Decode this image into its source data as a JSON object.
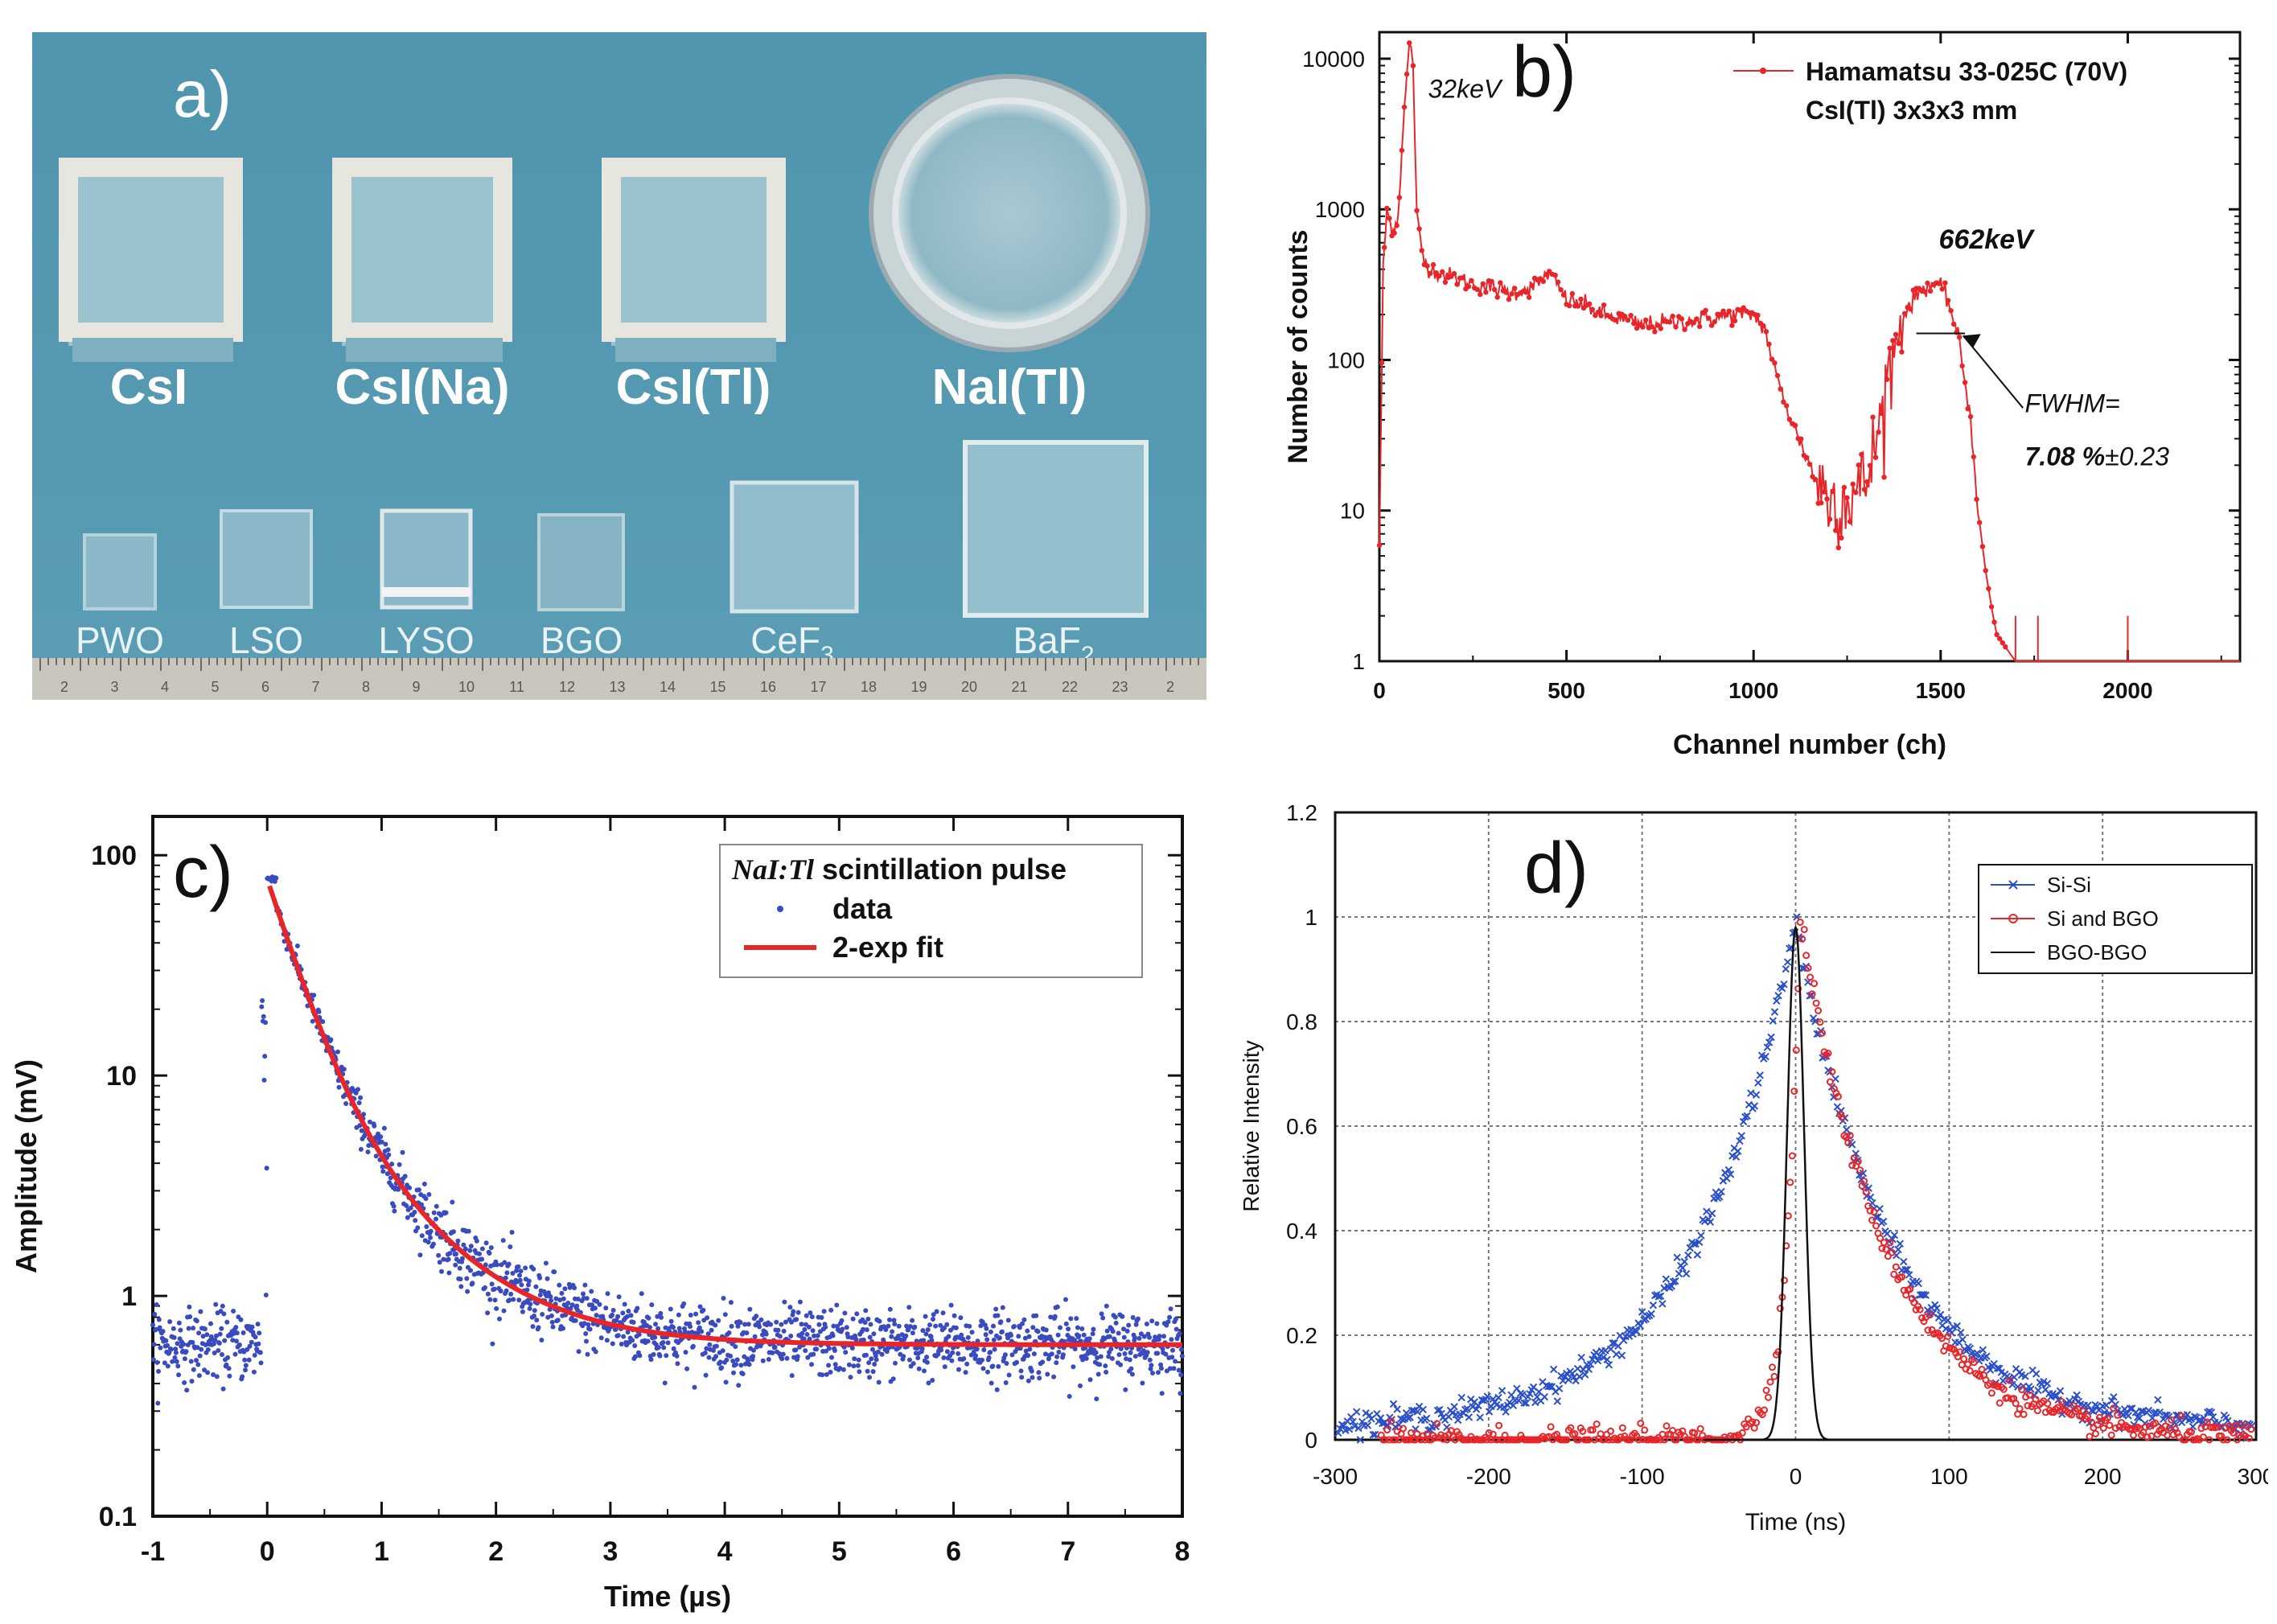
{
  "photo_panel": {
    "label": "a)",
    "top_crystals": [
      "CsI",
      "CsI(Na)",
      "CsI(Tl)",
      "NaI(Tl)"
    ],
    "bottom_crystals": [
      {
        "name": "PWO",
        "sub": ""
      },
      {
        "name": "LSO",
        "sub": ""
      },
      {
        "name": "LYSO",
        "sub": ""
      },
      {
        "name": "BGO",
        "sub": ""
      },
      {
        "name": "CeF",
        "sub": "3"
      },
      {
        "name": "BaF",
        "sub": "2"
      }
    ],
    "ruler_numbers": [
      "2",
      "3",
      "4",
      "5",
      "6",
      "7",
      "8",
      "9",
      "10",
      "11",
      "12",
      "13",
      "14",
      "15",
      "16",
      "17",
      "18",
      "19",
      "20",
      "21",
      "22",
      "23",
      "2"
    ]
  },
  "chart_data": [
    {
      "id": "b",
      "label": "b)",
      "type": "line",
      "yscale": "log",
      "xlabel": "Channel number (ch)",
      "ylabel": "Number of counts",
      "xlim": [
        0,
        2300
      ],
      "ylim": [
        1,
        15000
      ],
      "xticks": [
        0,
        500,
        1000,
        1500,
        2000
      ],
      "yticks": [
        1,
        10,
        100,
        1000,
        10000
      ],
      "ytick_labels": [
        "1",
        "10",
        "100",
        "1000",
        "10000"
      ],
      "legend": [
        "Hamamatsu 33-025C (70V)",
        "CsI(Tl) 3x3x3 mm"
      ],
      "annotations": {
        "low_peak": "32keV",
        "peak": "662keV",
        "fwhm_label": "FWHM=",
        "fwhm_value": "7.08 %",
        "fwhm_err": "±0.23"
      },
      "series": [
        {
          "name": "Hamamatsu 33-025C (70V)",
          "color": "#e8262a",
          "x": [
            0,
            10,
            20,
            30,
            40,
            50,
            60,
            70,
            80,
            85,
            90,
            95,
            100,
            110,
            120,
            140,
            160,
            200,
            250,
            300,
            350,
            400,
            430,
            450,
            470,
            500,
            550,
            600,
            700,
            800,
            900,
            950,
            1000,
            1030,
            1060,
            1100,
            1150,
            1200,
            1250,
            1300,
            1330,
            1360,
            1400,
            1450,
            1480,
            1500,
            1520,
            1550,
            1580,
            1600,
            1620,
            1640,
            1650,
            1700,
            1750,
            1800,
            2000
          ],
          "values": [
            6,
            400,
            1000,
            780,
            750,
            900,
            2500,
            6000,
            12000,
            12500,
            9000,
            3000,
            900,
            600,
            450,
            400,
            380,
            350,
            320,
            300,
            280,
            300,
            330,
            380,
            330,
            250,
            230,
            200,
            170,
            180,
            190,
            200,
            200,
            160,
            80,
            40,
            20,
            12,
            12,
            15,
            30,
            80,
            200,
            300,
            320,
            300,
            250,
            130,
            40,
            10,
            4,
            2,
            1.5,
            1,
            1,
            1,
            1
          ]
        }
      ]
    },
    {
      "id": "c",
      "label": "c)",
      "type": "scatter",
      "yscale": "log",
      "xlabel": "Time (µs)",
      "ylabel": "Amplitude (mV)",
      "xlim": [
        -1,
        8
      ],
      "ylim": [
        0.1,
        150
      ],
      "xticks": [
        -1,
        0,
        1,
        2,
        3,
        4,
        5,
        6,
        7,
        8
      ],
      "yticks": [
        0.1,
        1,
        10,
        100
      ],
      "ytick_labels": [
        "0.1",
        "1",
        "10",
        "100"
      ],
      "legend": {
        "title_italic": "NaI:Tl",
        "title_rest": " scintillation pulse",
        "data": "data",
        "fit": "2-exp fit"
      },
      "series": [
        {
          "name": "data",
          "color": "#3a4bbf",
          "model": {
            "baseline": 0.6,
            "peak": 78,
            "fast_amp": 67,
            "fast_tau": 0.25,
            "slow_amp": 10.4,
            "slow_tau": 0.7,
            "noise": 0.18
          }
        },
        {
          "name": "2-exp fit",
          "color": "#e8262a",
          "model": {
            "baseline": 0.6,
            "fast_amp": 67,
            "fast_tau": 0.25,
            "slow_amp": 10.4,
            "slow_tau": 0.7
          }
        }
      ]
    },
    {
      "id": "d",
      "label": "d)",
      "type": "line",
      "xlabel": "Time (ns)",
      "ylabel": "Relative Intensity",
      "xlim": [
        -300,
        300
      ],
      "ylim": [
        0,
        1.2
      ],
      "xticks": [
        -300,
        -200,
        -100,
        0,
        100,
        200,
        300
      ],
      "yticks": [
        0,
        0.2,
        0.4,
        0.6,
        0.8,
        1,
        1.2
      ],
      "ytick_labels": [
        "0",
        "0.2",
        "0.4",
        "0.6",
        "0.8",
        "1",
        "1.2"
      ],
      "grid": true,
      "legend": [
        "Si-Si",
        "Si and BGO",
        "BGO-BGO"
      ],
      "series": [
        {
          "name": "Si-Si",
          "color": "#2a4fc9",
          "marker": "x",
          "model": {
            "center": 0,
            "left_tau": 65,
            "right_tau": 62
          }
        },
        {
          "name": "Si and BGO",
          "color": "#e8262a",
          "marker": "o",
          "model": {
            "center": 3,
            "left_tau": 9,
            "right_tau": 56
          }
        },
        {
          "name": "BGO-BGO",
          "color": "#111111",
          "marker": "none",
          "model": {
            "center": 0,
            "left_tau": 5.5,
            "right_tau": 5.5
          }
        }
      ]
    }
  ]
}
